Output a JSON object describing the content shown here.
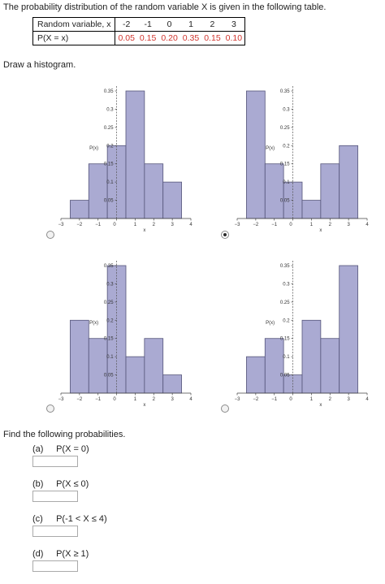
{
  "intro": "The probability distribution of the random variable X is given in the following table.",
  "table": {
    "x_header": "Random variable, x",
    "p_header": "P(X = x)",
    "x_values": [
      "-2",
      "-1",
      "0",
      "1",
      "2",
      "3"
    ],
    "p_values": [
      "0.05",
      "0.15",
      "0.20",
      "0.35",
      "0.15",
      "0.10"
    ],
    "prob_color": "#d0352e"
  },
  "draw_label": "Draw a histogram.",
  "chart_data": [
    {
      "type": "bar",
      "option": "top-left",
      "selected": false,
      "categories": [
        "-2",
        "-1",
        "0",
        "1",
        "2",
        "3"
      ],
      "values": [
        0.05,
        0.15,
        0.2,
        0.35,
        0.15,
        0.1
      ],
      "ylabel": "P(x)",
      "xlabel": "x",
      "y_ticks": [
        "0.05",
        "0.1",
        "0.15",
        "0.2",
        "0.25",
        "0.3",
        "0.35"
      ],
      "x_ticks": [
        "-3",
        "-2",
        "-1",
        "0",
        "1",
        "2",
        "3",
        "4"
      ],
      "xlim": [
        -3,
        4
      ],
      "ylim": [
        0,
        0.35
      ]
    },
    {
      "type": "bar",
      "option": "top-right",
      "selected": true,
      "categories": [
        "-2",
        "-1",
        "0",
        "1",
        "2",
        "3"
      ],
      "values": [
        0.35,
        0.15,
        0.1,
        0.05,
        0.15,
        0.2
      ],
      "ylabel": "P(x)",
      "xlabel": "x",
      "y_ticks": [
        "0.05",
        "0.1",
        "0.15",
        "0.2",
        "0.25",
        "0.3",
        "0.35"
      ],
      "x_ticks": [
        "-3",
        "-2",
        "-1",
        "0",
        "1",
        "2",
        "3",
        "4"
      ],
      "xlim": [
        -3,
        4
      ],
      "ylim": [
        0,
        0.35
      ]
    },
    {
      "type": "bar",
      "option": "bottom-left",
      "selected": false,
      "categories": [
        "-2",
        "-1",
        "0",
        "1",
        "2",
        "3"
      ],
      "values": [
        0.2,
        0.15,
        0.35,
        0.1,
        0.15,
        0.05
      ],
      "ylabel": "P(x)",
      "xlabel": "x",
      "y_ticks": [
        "0.05",
        "0.1",
        "0.15",
        "0.2",
        "0.25",
        "0.3",
        "0.35"
      ],
      "x_ticks": [
        "-3",
        "-2",
        "-1",
        "0",
        "1",
        "2",
        "3",
        "4"
      ],
      "xlim": [
        -3,
        4
      ],
      "ylim": [
        0,
        0.35
      ]
    },
    {
      "type": "bar",
      "option": "bottom-right",
      "selected": false,
      "categories": [
        "-2",
        "-1",
        "0",
        "1",
        "2",
        "3"
      ],
      "values": [
        0.1,
        0.15,
        0.05,
        0.2,
        0.15,
        0.35
      ],
      "ylabel": "P(x)",
      "xlabel": "x",
      "y_ticks": [
        "0.05",
        "0.1",
        "0.15",
        "0.2",
        "0.25",
        "0.3",
        "0.35"
      ],
      "x_ticks": [
        "-3",
        "-2",
        "-1",
        "0",
        "1",
        "2",
        "3",
        "4"
      ],
      "xlim": [
        -3,
        4
      ],
      "ylim": [
        0,
        0.35
      ]
    }
  ],
  "bar_fill": "#aaaad2",
  "bar_stroke": "#55557a",
  "find_label": "Find the following probabilities.",
  "questions": [
    {
      "label": "(a)",
      "text": "P(X = 0)",
      "value": ""
    },
    {
      "label": "(b)",
      "text": "P(X ≤ 0)",
      "value": ""
    },
    {
      "label": "(c)",
      "text": "P(-1 < X ≤ 4)",
      "value": ""
    },
    {
      "label": "(d)",
      "text": "P(X ≥ 1)",
      "value": ""
    }
  ]
}
